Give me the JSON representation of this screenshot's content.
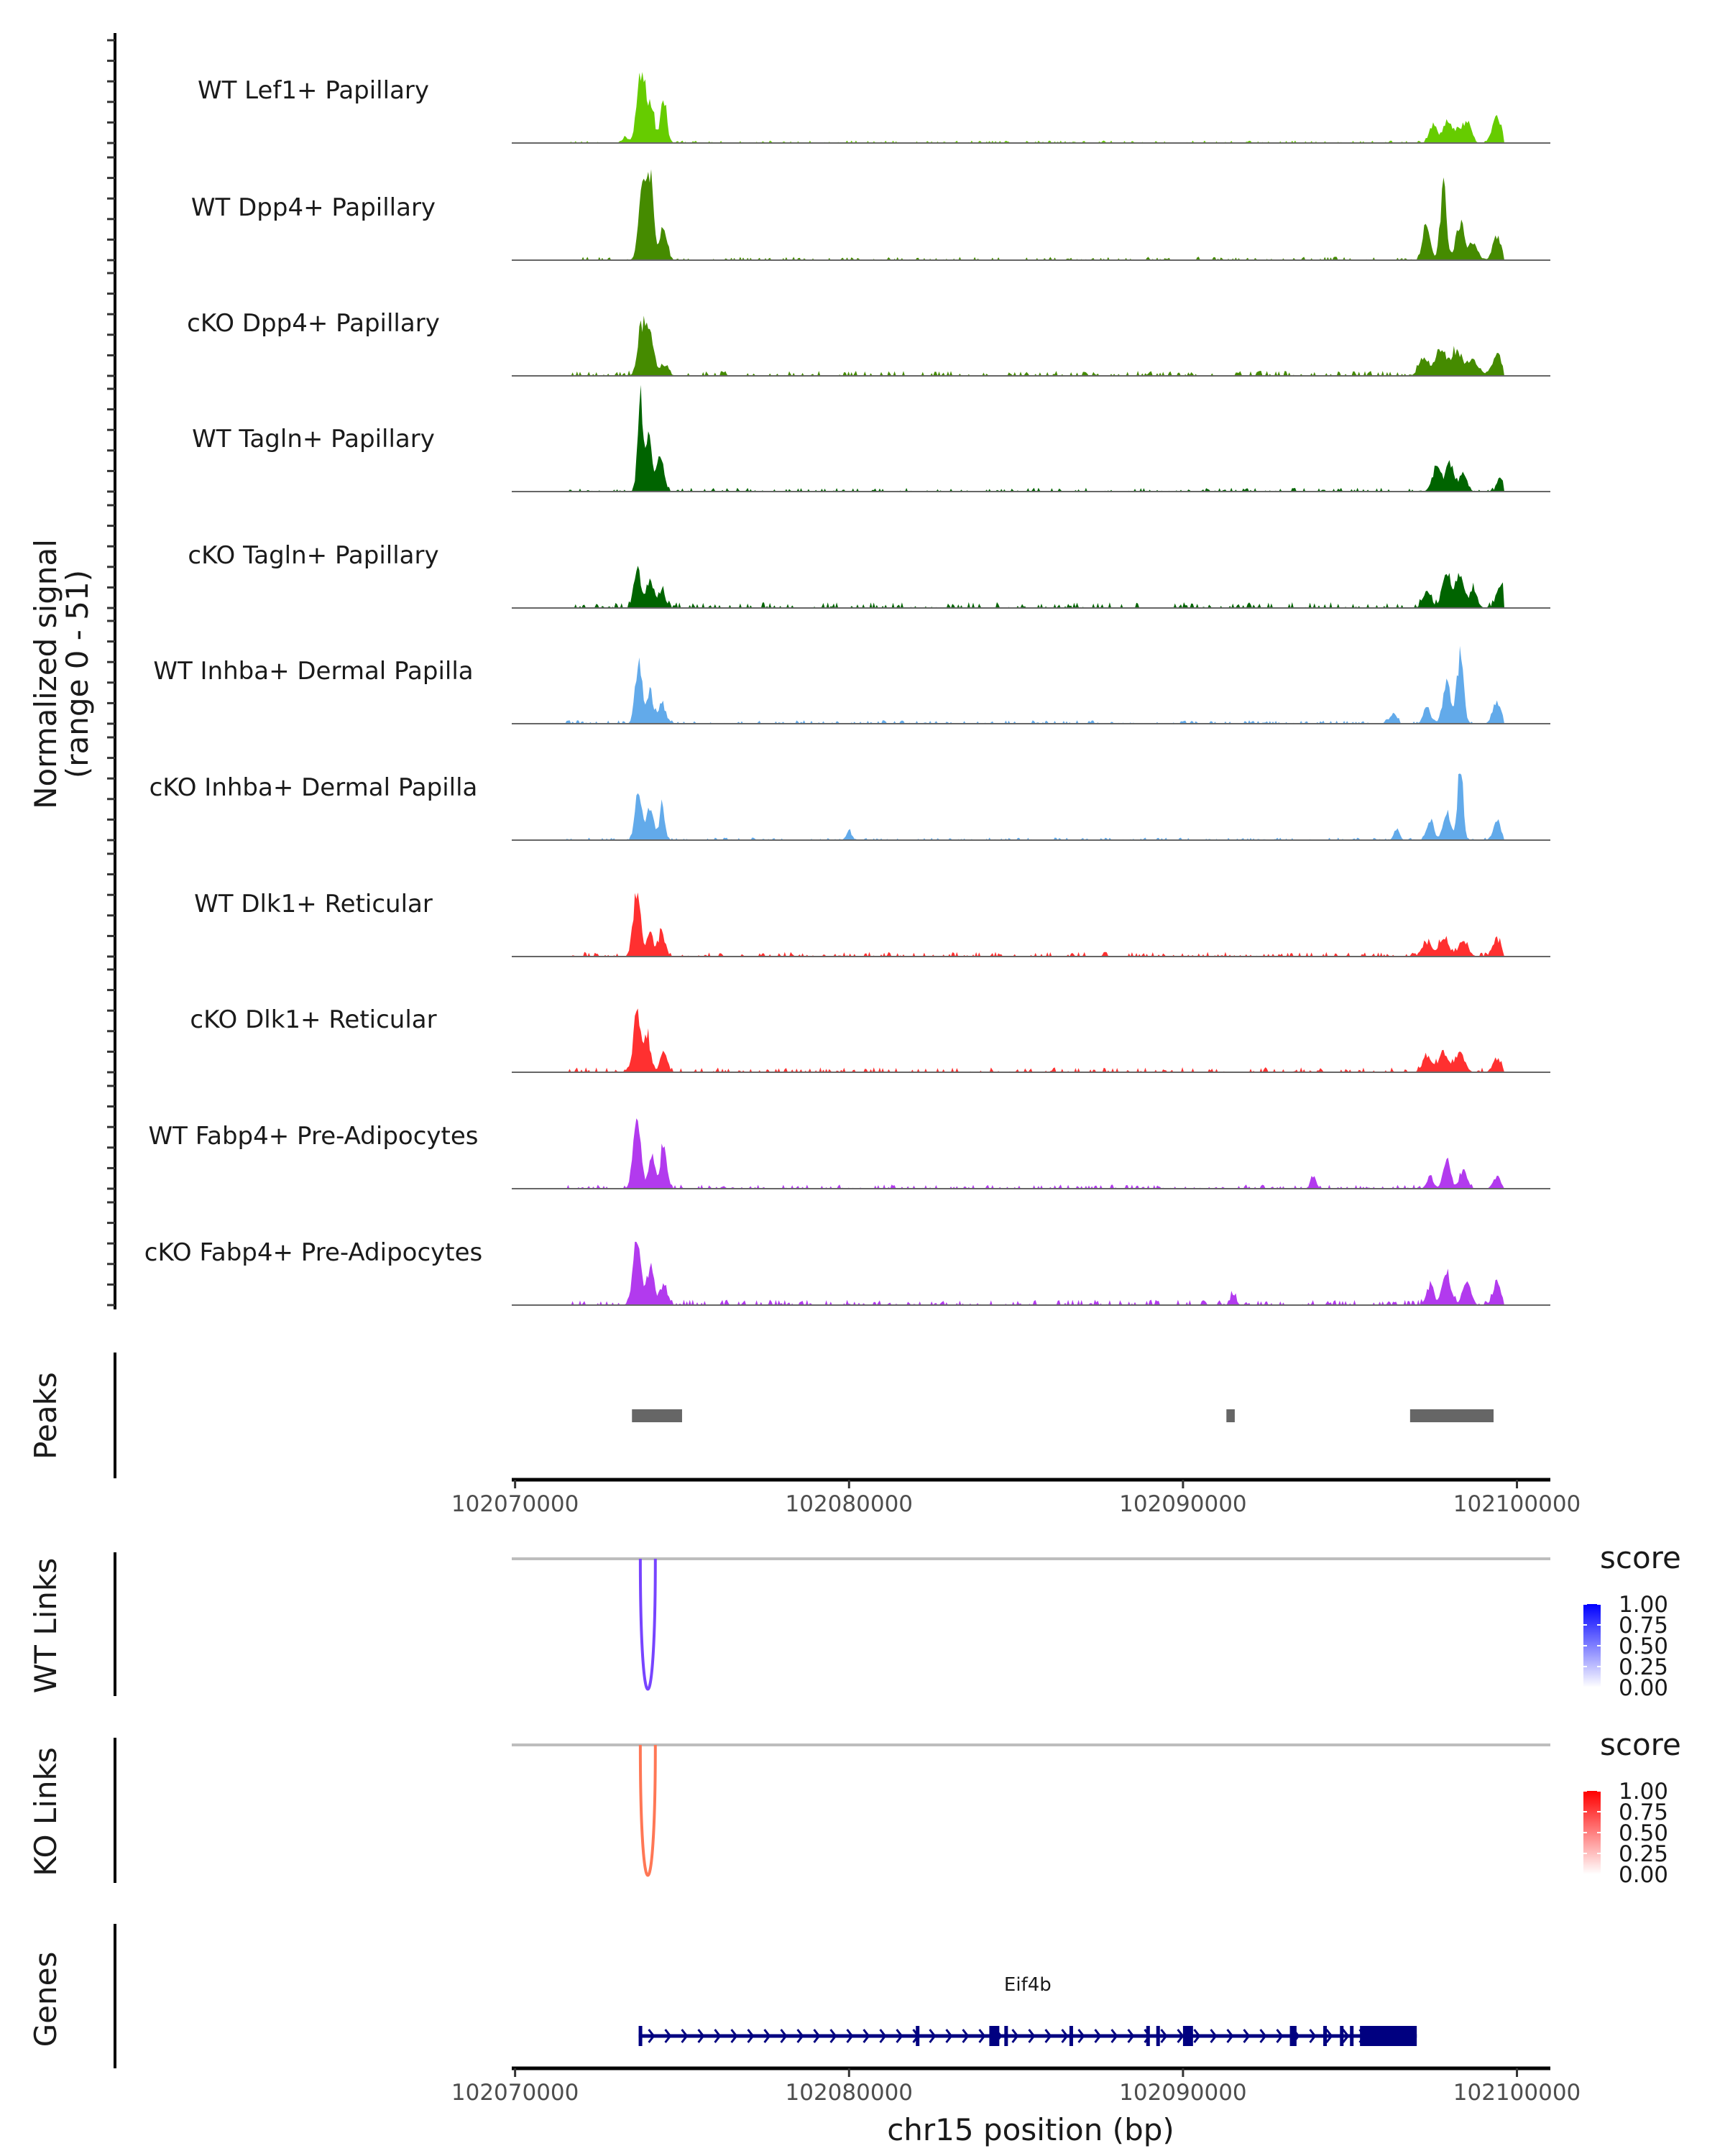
{
  "chart_data": {
    "type": "area",
    "title": "",
    "xlabel": "chr15 position (bp)",
    "ylabel": "Normalized signal\n(range 0 - 51)",
    "ylabel_lines": [
      "Normalized signal",
      "(range 0 - 51)"
    ],
    "ylim": [
      0,
      51
    ],
    "xlim": [
      102069900,
      102101000
    ],
    "x_ticks": [
      102070000,
      102080000,
      102090000,
      102100000
    ],
    "x_tick_labels": [
      "102070000",
      "102080000",
      "102090000",
      "102100000"
    ],
    "grid": false,
    "tracks": [
      {
        "name": "WT Lef1+ Papillary",
        "color": "#66CC00",
        "peaks": [
          [
            102073800,
            40,
            130
          ],
          [
            102074100,
            16,
            90
          ],
          [
            102074450,
            24,
            90
          ],
          [
            102073300,
            3,
            80
          ],
          [
            102097500,
            9,
            120
          ],
          [
            102097900,
            11,
            110
          ],
          [
            102098200,
            7,
            110
          ],
          [
            102098500,
            12,
            120
          ],
          [
            102099400,
            13,
            130
          ]
        ],
        "noise": 0.6
      },
      {
        "name": "WT Dpp4+ Papillary",
        "color": "#458B00",
        "peaks": [
          [
            102073800,
            33,
            110
          ],
          [
            102074050,
            41,
            100
          ],
          [
            102074450,
            18,
            100
          ],
          [
            102097300,
            20,
            110
          ],
          [
            102097800,
            38,
            90
          ],
          [
            102098300,
            19,
            130
          ],
          [
            102098700,
            9,
            120
          ],
          [
            102099400,
            13,
            120
          ]
        ],
        "noise": 0.8
      },
      {
        "name": "cKO Dpp4+ Papillary",
        "color": "#458B00",
        "peaks": [
          [
            102073800,
            26,
            120
          ],
          [
            102074050,
            18,
            110
          ],
          [
            102074450,
            6,
            120
          ],
          [
            102097200,
            8,
            140
          ],
          [
            102097700,
            14,
            160
          ],
          [
            102098200,
            12,
            180
          ],
          [
            102098700,
            8,
            160
          ],
          [
            102099400,
            11,
            140
          ]
        ],
        "noise": 1.2
      },
      {
        "name": "WT Tagln+ Papillary",
        "color": "#006400",
        "peaks": [
          [
            102073750,
            47,
            80
          ],
          [
            102074000,
            28,
            90
          ],
          [
            102074350,
            18,
            110
          ],
          [
            102097600,
            13,
            130
          ],
          [
            102098000,
            15,
            120
          ],
          [
            102098400,
            9,
            110
          ],
          [
            102099500,
            7,
            90
          ]
        ],
        "noise": 0.9
      },
      {
        "name": "cKO Tagln+ Papillary",
        "color": "#006400",
        "peaks": [
          [
            102073650,
            21,
            100
          ],
          [
            102074050,
            13,
            120
          ],
          [
            102074400,
            9,
            100
          ],
          [
            102097300,
            8,
            120
          ],
          [
            102097900,
            17,
            140
          ],
          [
            102098300,
            16,
            130
          ],
          [
            102098700,
            9,
            110
          ],
          [
            102099500,
            11,
            120
          ]
        ],
        "noise": 1.4
      },
      {
        "name": "WT Inhba+ Dermal Papilla",
        "color": "#62AAEA",
        "peaks": [
          [
            102073700,
            32,
            100
          ],
          [
            102074050,
            17,
            90
          ],
          [
            102074400,
            11,
            100
          ],
          [
            102096300,
            5,
            100
          ],
          [
            102097300,
            9,
            100
          ],
          [
            102097900,
            20,
            120
          ],
          [
            102098300,
            34,
            100
          ],
          [
            102099400,
            12,
            120
          ]
        ],
        "noise": 0.8
      },
      {
        "name": "cKO Inhba+ Dermal Papilla",
        "color": "#62AAEA",
        "peaks": [
          [
            102073700,
            25,
            100
          ],
          [
            102074050,
            18,
            100
          ],
          [
            102074400,
            17,
            80
          ],
          [
            102080000,
            5,
            80
          ],
          [
            102096400,
            6,
            80
          ],
          [
            102097400,
            11,
            100
          ],
          [
            102097900,
            13,
            120
          ],
          [
            102098300,
            40,
            80
          ],
          [
            102099400,
            10,
            110
          ]
        ],
        "noise": 0.6
      },
      {
        "name": "WT Dlk1+ Reticular",
        "color": "#FF3030",
        "peaks": [
          [
            102073650,
            36,
            110
          ],
          [
            102074050,
            10,
            110
          ],
          [
            102074400,
            12,
            100
          ],
          [
            102097300,
            7,
            140
          ],
          [
            102097800,
            9,
            150
          ],
          [
            102098400,
            8,
            140
          ],
          [
            102099400,
            9,
            120
          ]
        ],
        "noise": 1.1
      },
      {
        "name": "cKO Dlk1+ Reticular",
        "color": "#FF3030",
        "peaks": [
          [
            102073650,
            30,
            110
          ],
          [
            102073950,
            18,
            100
          ],
          [
            102074450,
            11,
            100
          ],
          [
            102097300,
            8,
            130
          ],
          [
            102097800,
            10,
            150
          ],
          [
            102098300,
            9,
            140
          ],
          [
            102099400,
            7,
            120
          ]
        ],
        "noise": 1.2
      },
      {
        "name": "WT Fabp4+ Pre-Adipocytes",
        "color": "#B23AEE",
        "peaks": [
          [
            102073650,
            40,
            110
          ],
          [
            102074100,
            17,
            90
          ],
          [
            102074450,
            24,
            90
          ],
          [
            102093900,
            5,
            90
          ],
          [
            102097400,
            6,
            100
          ],
          [
            102097900,
            15,
            110
          ],
          [
            102098400,
            10,
            110
          ],
          [
            102099400,
            6,
            110
          ]
        ],
        "noise": 1.0
      },
      {
        "name": "cKO Fabp4+ Pre-Adipocytes",
        "color": "#B23AEE",
        "peaks": [
          [
            102073650,
            33,
            120
          ],
          [
            102074050,
            19,
            110
          ],
          [
            102074450,
            11,
            110
          ],
          [
            102091500,
            6,
            80
          ],
          [
            102097400,
            10,
            110
          ],
          [
            102097900,
            15,
            130
          ],
          [
            102098500,
            13,
            120
          ],
          [
            102099400,
            12,
            120
          ]
        ],
        "noise": 1.3
      }
    ],
    "peaks_track": {
      "label": "Peaks",
      "color": "#666666",
      "regions": [
        [
          102073500,
          102075000
        ],
        [
          102091300,
          102091550
        ],
        [
          102096800,
          102099300
        ]
      ]
    },
    "links": [
      {
        "label": "WT Links",
        "color": "#7744FF",
        "legend_high": "#0000FF",
        "arcs": [
          {
            "start": 102073750,
            "end": 102074200,
            "score": 0.7
          }
        ]
      },
      {
        "label": "KO Links",
        "color": "#FF7755",
        "legend_high": "#FF0000",
        "arcs": [
          {
            "start": 102073750,
            "end": 102074200,
            "score": 0.6
          }
        ]
      }
    ],
    "legend": {
      "title": "score",
      "ticks": [
        "1.00",
        "0.75",
        "0.50",
        "0.25",
        "0.00"
      ]
    },
    "genes": {
      "label": "Genes",
      "color": "#000080",
      "gene": {
        "name": "Eif4b",
        "strand": "+",
        "start": 102073700,
        "end": 102097000,
        "exons": [
          [
            102073700,
            102073800
          ],
          [
            102082000,
            102082100
          ],
          [
            102084200,
            102084500
          ],
          [
            102084650,
            102084700
          ],
          [
            102086600,
            102086700
          ],
          [
            102088900,
            102089000
          ],
          [
            102089200,
            102089300
          ],
          [
            102090000,
            102090300
          ],
          [
            102093200,
            102093400
          ],
          [
            102094200,
            102094250
          ],
          [
            102094700,
            102094800
          ],
          [
            102095000,
            102095050
          ],
          [
            102095300,
            102097000
          ]
        ]
      }
    }
  }
}
